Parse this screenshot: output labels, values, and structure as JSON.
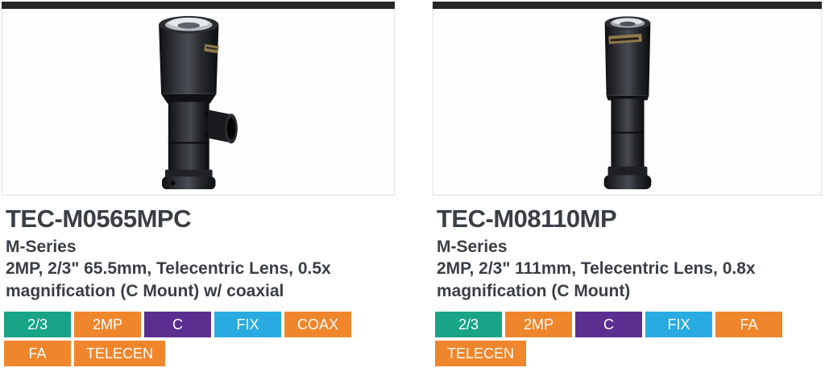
{
  "colors": {
    "accent_bar": "#262628",
    "card_border": "#e1e1e1",
    "text": "#3a3e45",
    "tag_green": "#18a487",
    "tag_orange": "#f0862c",
    "tag_purple": "#5b2f90",
    "tag_blue": "#29abe2"
  },
  "cards": [
    {
      "title": "TEC-M0565MPC",
      "series": "M-Series",
      "description": "2MP, 2/3\" 65.5mm, Telecentric Lens, 0.5x magnification (C Mount) w/ coaxial",
      "image_name": "telecentric-lens-with-coaxial-port-photo",
      "tags": [
        {
          "label": "2/3",
          "color": "#18a487"
        },
        {
          "label": "2MP",
          "color": "#f0862c"
        },
        {
          "label": "C",
          "color": "#5b2f90"
        },
        {
          "label": "FIX",
          "color": "#29abe2"
        },
        {
          "label": "COAX",
          "color": "#f0862c"
        },
        {
          "label": "FA",
          "color": "#f0862c"
        },
        {
          "label": "TELECEN",
          "color": "#f0862c"
        }
      ]
    },
    {
      "title": "TEC-M08110MP",
      "series": "M-Series",
      "description": "2MP, 2/3\" 111mm, Telecentric Lens, 0.8x magnification (C Mount)",
      "image_name": "telecentric-lens-photo",
      "tags": [
        {
          "label": "2/3",
          "color": "#18a487"
        },
        {
          "label": "2MP",
          "color": "#f0862c"
        },
        {
          "label": "C",
          "color": "#5b2f90"
        },
        {
          "label": "FIX",
          "color": "#29abe2"
        },
        {
          "label": "FA",
          "color": "#f0862c"
        },
        {
          "label": "TELECEN",
          "color": "#f0862c"
        }
      ]
    }
  ]
}
